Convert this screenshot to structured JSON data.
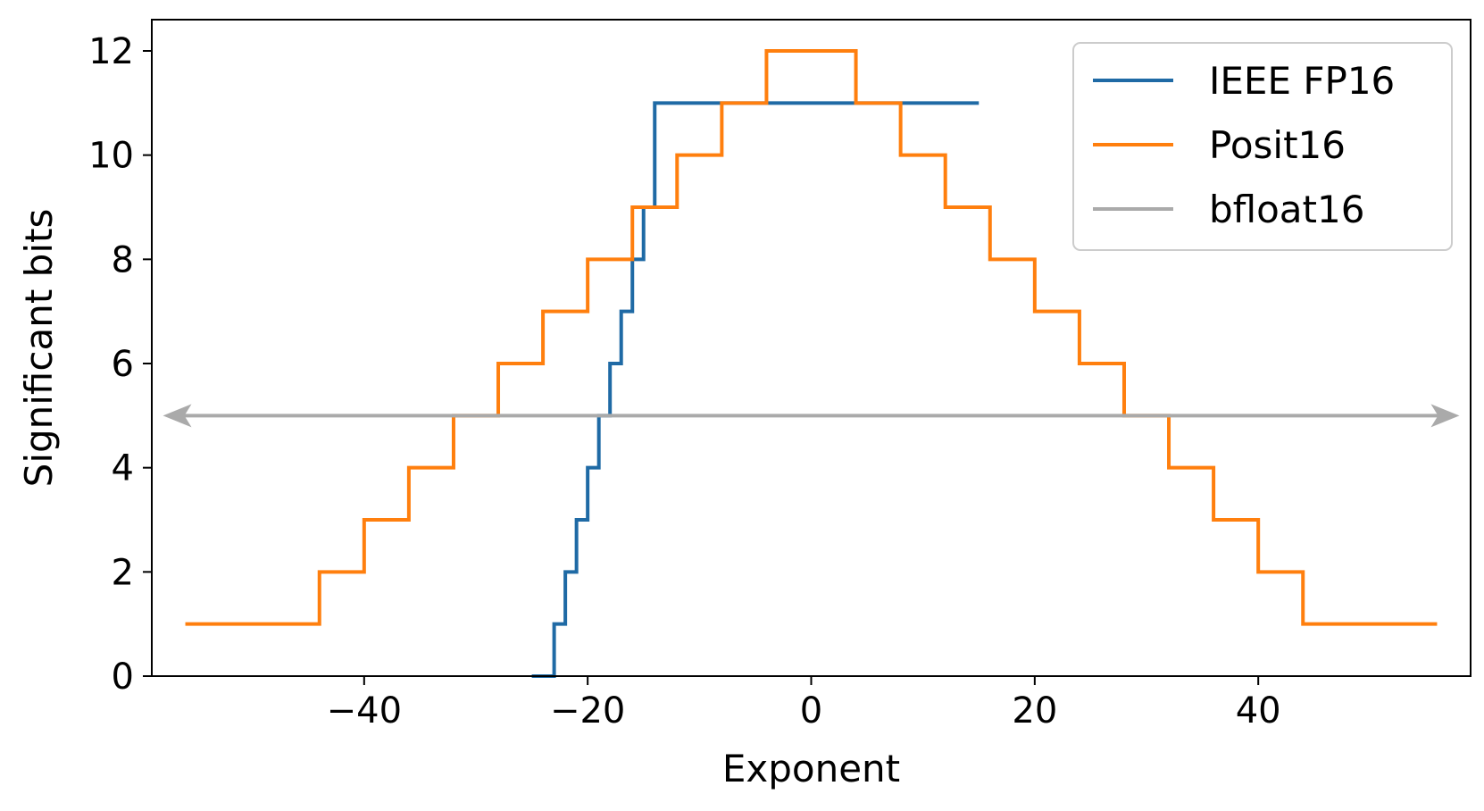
{
  "chart_data": {
    "type": "line",
    "title": "",
    "xlabel": "Exponent",
    "ylabel": "Significant bits",
    "xlim": [
      -59,
      59
    ],
    "ylim": [
      0,
      12.6
    ],
    "xticks": [
      {
        "value": -40,
        "label": "−40"
      },
      {
        "value": -20,
        "label": "−20"
      },
      {
        "value": 0,
        "label": "0"
      },
      {
        "value": 20,
        "label": "20"
      },
      {
        "value": 40,
        "label": "40"
      }
    ],
    "yticks": [
      {
        "value": 0,
        "label": "0"
      },
      {
        "value": 2,
        "label": "2"
      },
      {
        "value": 4,
        "label": "4"
      },
      {
        "value": 6,
        "label": "6"
      },
      {
        "value": 8,
        "label": "8"
      },
      {
        "value": 10,
        "label": "10"
      },
      {
        "value": 12,
        "label": "12"
      }
    ],
    "grid": false,
    "legend_position": "top-right",
    "series": [
      {
        "name": "IEEE FP16",
        "color": "#1f6aa5",
        "step": "post",
        "points": [
          [
            -25,
            0
          ],
          [
            -23,
            1
          ],
          [
            -22,
            2
          ],
          [
            -21,
            3
          ],
          [
            -20,
            4
          ],
          [
            -19,
            5
          ],
          [
            -18,
            6
          ],
          [
            -17,
            7
          ],
          [
            -16,
            8
          ],
          [
            -15,
            9
          ],
          [
            -14,
            11
          ],
          [
            15,
            11
          ]
        ]
      },
      {
        "name": "Posit16",
        "color": "#ff7f0e",
        "step": "post",
        "points": [
          [
            -56,
            1
          ],
          [
            -44,
            2
          ],
          [
            -40,
            3
          ],
          [
            -36,
            4
          ],
          [
            -32,
            5
          ],
          [
            -28,
            6
          ],
          [
            -24,
            7
          ],
          [
            -20,
            8
          ],
          [
            -16,
            9
          ],
          [
            -12,
            10
          ],
          [
            -8,
            11
          ],
          [
            -4,
            12
          ],
          [
            4,
            11
          ],
          [
            8,
            10
          ],
          [
            12,
            9
          ],
          [
            16,
            8
          ],
          [
            20,
            7
          ],
          [
            24,
            6
          ],
          [
            28,
            5
          ],
          [
            32,
            4
          ],
          [
            36,
            3
          ],
          [
            40,
            2
          ],
          [
            44,
            1
          ],
          [
            56,
            1
          ]
        ]
      },
      {
        "name": "bfloat16",
        "color": "#aaaaaa",
        "style": "double-arrow",
        "points": [
          [
            -58,
            5
          ],
          [
            58,
            5
          ]
        ]
      }
    ]
  }
}
